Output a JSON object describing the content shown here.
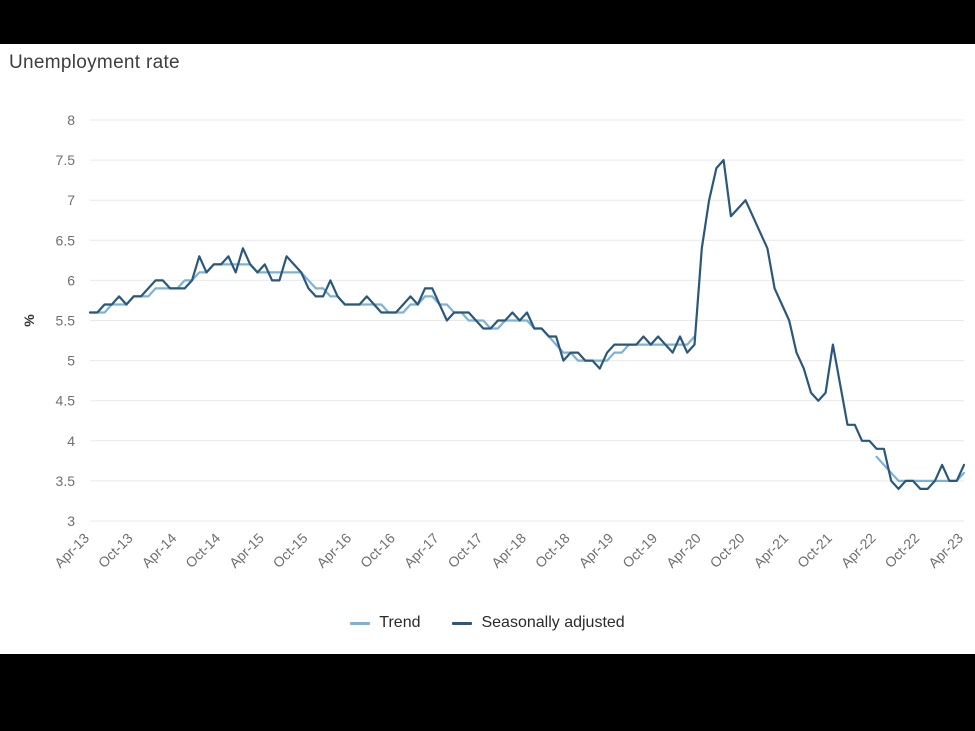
{
  "frame": {
    "background": "#000000",
    "panel_background": "#ffffff"
  },
  "chart": {
    "title": "Unemployment rate",
    "title_color": "#3e3e3e"
  },
  "chart_data": {
    "type": "line",
    "title": "Unemployment rate",
    "xlabel": "",
    "ylabel": "%",
    "ylim": [
      3,
      8
    ],
    "grid": true,
    "grid_color": "#e9e9e9",
    "tick_label_color": "#6f6f6f",
    "axis_title_color": "#333333",
    "legend_position": "bottom",
    "frequency": "monthly",
    "x_start": "Apr-13",
    "x_end": "Apr-23",
    "x_tick_every_months": 6,
    "x_tick_labels": [
      "Apr-13",
      "Oct-13",
      "Apr-14",
      "Oct-14",
      "Apr-15",
      "Oct-15",
      "Apr-16",
      "Oct-16",
      "Apr-17",
      "Oct-17",
      "Apr-18",
      "Oct-18",
      "Apr-19",
      "Oct-19",
      "Apr-20",
      "Oct-20",
      "Apr-21",
      "Oct-21",
      "Apr-22",
      "Oct-22",
      "Apr-23"
    ],
    "y_ticks": [
      3,
      3.5,
      4,
      4.5,
      5,
      5.5,
      6,
      6.5,
      7,
      7.5,
      8
    ],
    "y_tick_labels": [
      "3",
      "3.5",
      "4",
      "4.5",
      "5",
      "5.5",
      "6",
      "6.5",
      "7",
      "7.5",
      "8"
    ],
    "series": [
      {
        "name": "Trend",
        "color": "#7db2d8",
        "values": [
          5.6,
          5.6,
          5.6,
          5.7,
          5.7,
          5.7,
          5.8,
          5.8,
          5.8,
          5.9,
          5.9,
          5.9,
          5.9,
          6.0,
          6.0,
          6.1,
          6.1,
          6.2,
          6.2,
          6.2,
          6.2,
          6.2,
          6.2,
          6.1,
          6.1,
          6.1,
          6.1,
          6.1,
          6.1,
          6.1,
          6.0,
          5.9,
          5.9,
          5.8,
          5.8,
          5.7,
          5.7,
          5.7,
          5.7,
          5.7,
          5.7,
          5.6,
          5.6,
          5.6,
          5.7,
          5.7,
          5.8,
          5.8,
          5.7,
          5.7,
          5.6,
          5.6,
          5.5,
          5.5,
          5.5,
          5.4,
          5.4,
          5.5,
          5.5,
          5.5,
          5.5,
          5.4,
          5.4,
          5.3,
          5.2,
          5.1,
          5.1,
          5.0,
          5.0,
          5.0,
          5.0,
          5.0,
          5.1,
          5.1,
          5.2,
          5.2,
          5.2,
          5.2,
          5.2,
          5.2,
          5.2,
          5.2,
          5.2,
          5.3,
          null,
          null,
          null,
          null,
          null,
          null,
          null,
          null,
          null,
          null,
          null,
          null,
          null,
          null,
          null,
          null,
          null,
          null,
          null,
          null,
          null,
          null,
          null,
          null,
          3.8,
          3.7,
          3.6,
          3.5,
          3.5,
          3.5,
          3.5,
          3.5,
          3.5,
          3.5,
          3.5,
          3.5,
          3.6
        ]
      },
      {
        "name": "Seasonally adjusted",
        "color": "#2a587d",
        "values": [
          5.6,
          5.6,
          5.7,
          5.7,
          5.8,
          5.7,
          5.8,
          5.8,
          5.9,
          6.0,
          6.0,
          5.9,
          5.9,
          5.9,
          6.0,
          6.3,
          6.1,
          6.2,
          6.2,
          6.3,
          6.1,
          6.4,
          6.2,
          6.1,
          6.2,
          6.0,
          6.0,
          6.3,
          6.2,
          6.1,
          5.9,
          5.8,
          5.8,
          6.0,
          5.8,
          5.7,
          5.7,
          5.7,
          5.8,
          5.7,
          5.6,
          5.6,
          5.6,
          5.7,
          5.8,
          5.7,
          5.9,
          5.9,
          5.7,
          5.5,
          5.6,
          5.6,
          5.6,
          5.5,
          5.4,
          5.4,
          5.5,
          5.5,
          5.6,
          5.5,
          5.6,
          5.4,
          5.4,
          5.3,
          5.3,
          5.0,
          5.1,
          5.1,
          5.0,
          5.0,
          4.9,
          5.1,
          5.2,
          5.2,
          5.2,
          5.2,
          5.3,
          5.2,
          5.3,
          5.2,
          5.1,
          5.3,
          5.1,
          5.2,
          6.4,
          7.0,
          7.4,
          7.5,
          6.8,
          6.9,
          7.0,
          6.8,
          6.6,
          6.4,
          5.9,
          5.7,
          5.5,
          5.1,
          4.9,
          4.6,
          4.5,
          4.6,
          5.2,
          4.7,
          4.2,
          4.2,
          4.0,
          4.0,
          3.9,
          3.9,
          3.5,
          3.4,
          3.5,
          3.5,
          3.4,
          3.4,
          3.5,
          3.7,
          3.5,
          3.5,
          3.7
        ]
      }
    ]
  }
}
